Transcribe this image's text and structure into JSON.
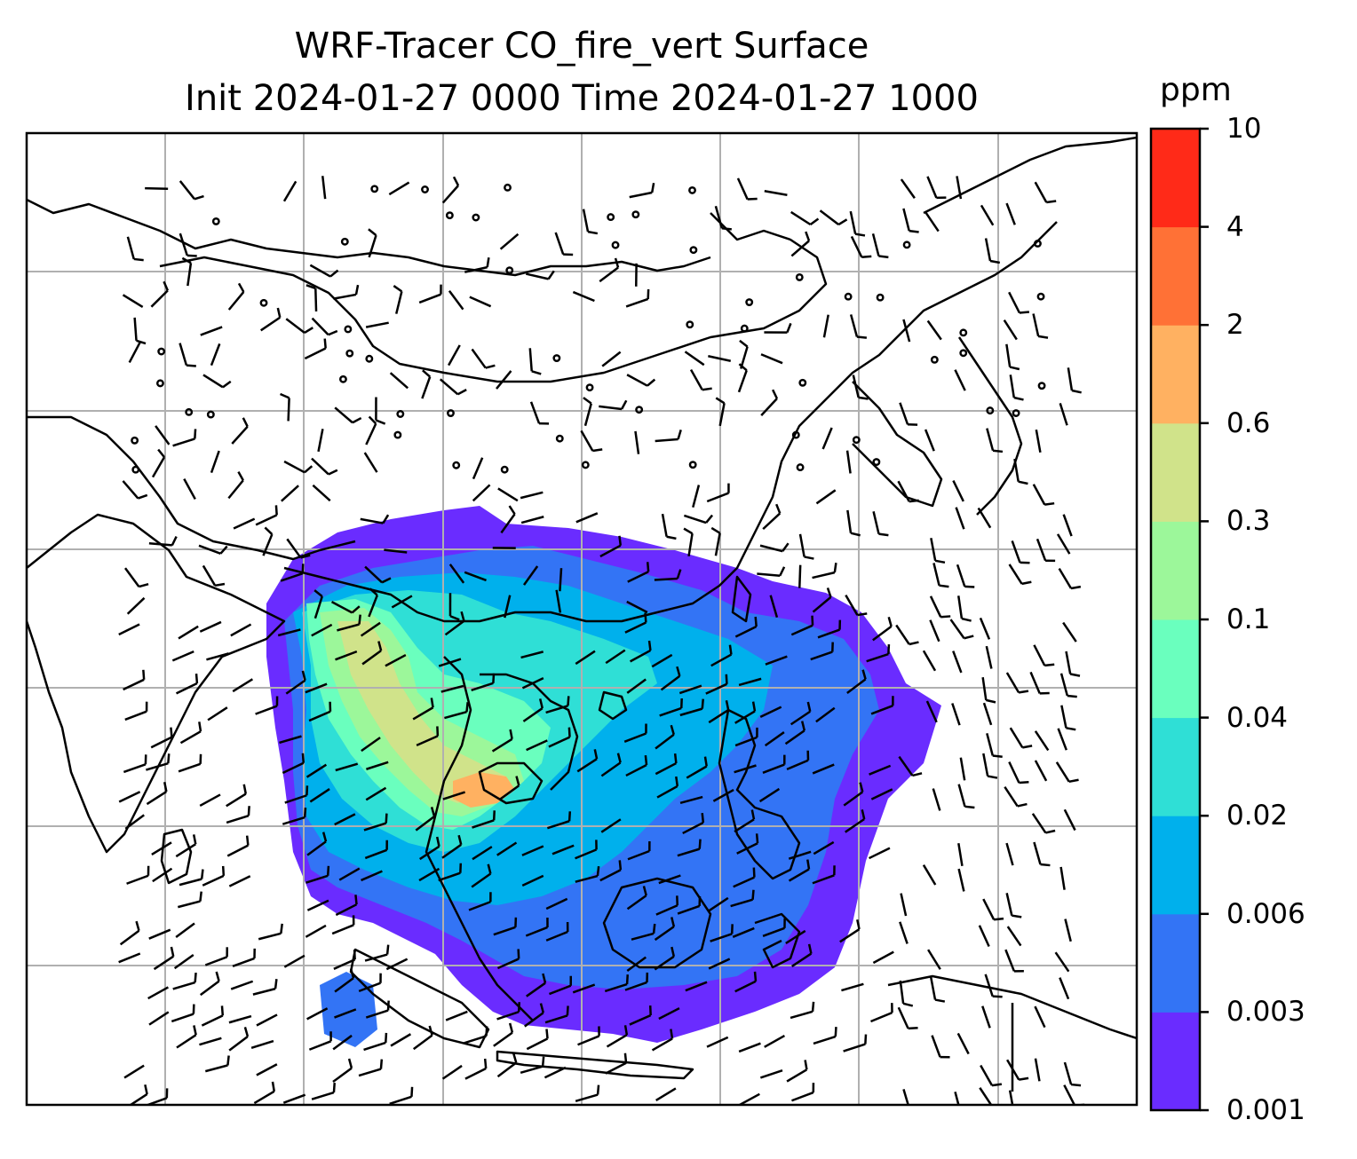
{
  "title_line1": "WRF-Tracer CO_fire_vert Surface",
  "title_line2": "Init 2024-01-27 0000 Time 2024-01-27 1000",
  "colorbar": {
    "units": "ppm",
    "ticks": [
      "0.001",
      "0.003",
      "0.006",
      "0.02",
      "0.04",
      "0.1",
      "0.3",
      "0.6",
      "2",
      "4",
      "10"
    ],
    "colors": [
      "#6a2cff",
      "#3374f5",
      "#00b0ec",
      "#2fdfd6",
      "#6affbe",
      "#9cf79a",
      "#d0e38a",
      "#ffb161",
      "#ff7136",
      "#ff2a18"
    ]
  },
  "map": {
    "gridlines": true,
    "grid_color": "#b0b0b0",
    "coastline_color": "#000000",
    "wind_barb_color": "#000000"
  }
}
